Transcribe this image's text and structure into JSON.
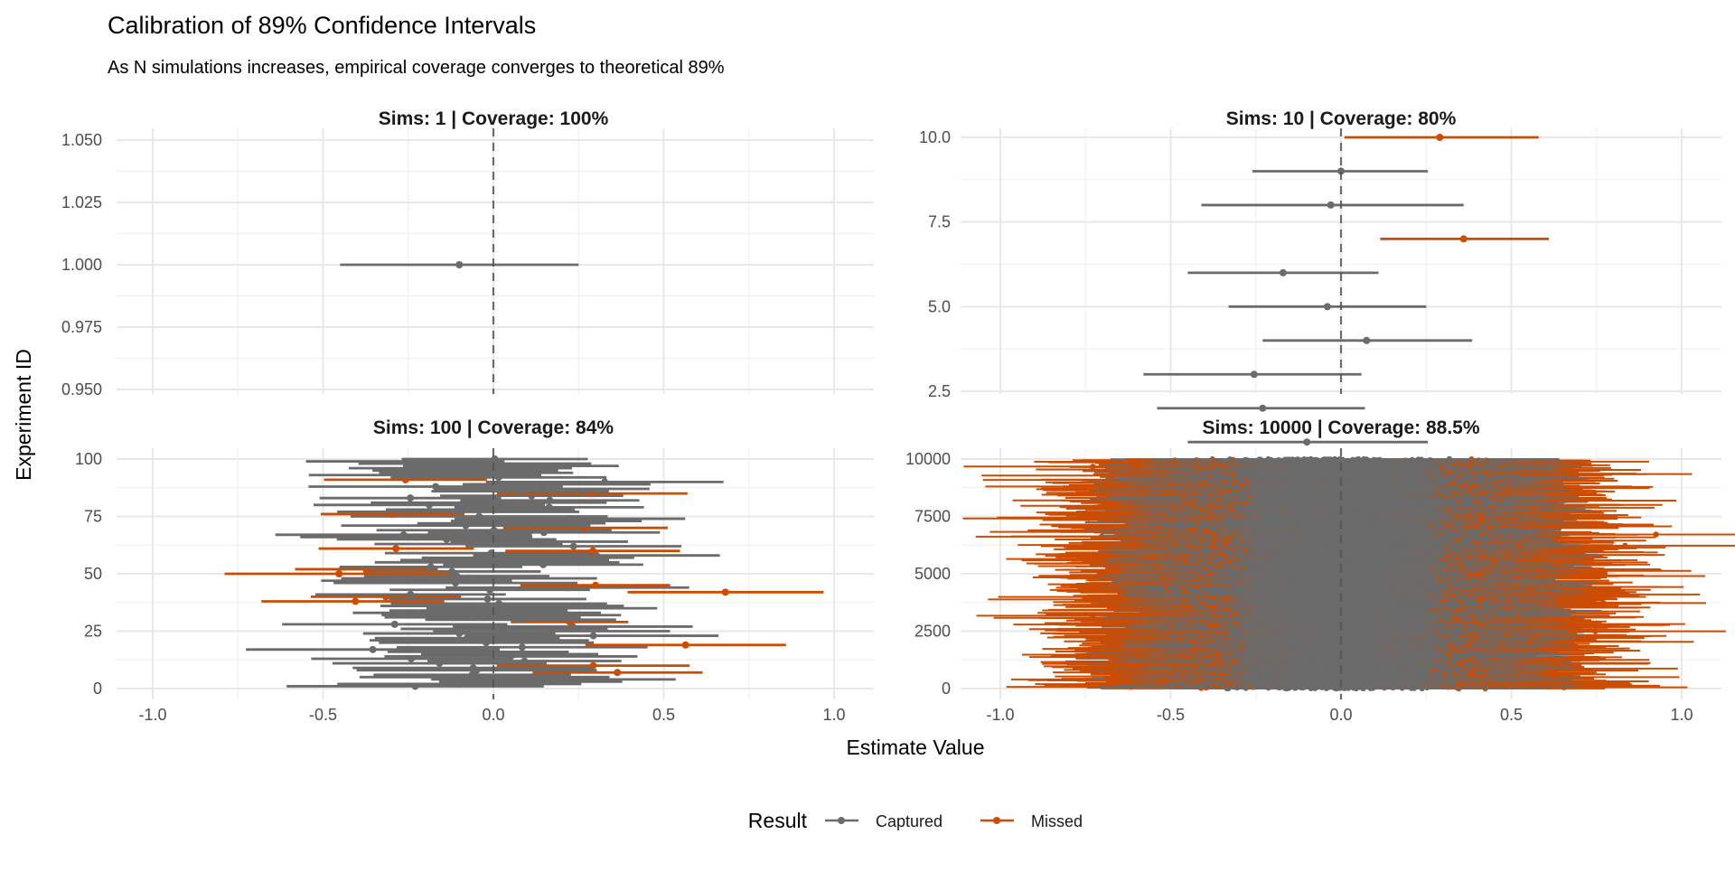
{
  "chart_data": {
    "type": "scatter",
    "mark": "pointrange",
    "title": "Calibration of 89% Confidence Intervals",
    "subtitle": "As N simulations increases, empirical coverage converges to theoretical 89%",
    "xlabel": "Estimate Value",
    "ylabel": "Experiment ID",
    "legend": {
      "title": "Result",
      "placement": "bottom",
      "entries": [
        {
          "label": "Captured",
          "color": "#6b6b6b"
        },
        {
          "label": "Missed",
          "color": "#cc4c02"
        }
      ]
    },
    "reference_line": {
      "x": 0,
      "style": "dashed"
    },
    "grid": true,
    "xlim": [
      -1.1,
      1.1
    ],
    "xticks": [
      -1.0,
      -0.5,
      0.0,
      0.5,
      1.0
    ],
    "xtick_labels": [
      "-1.0",
      "-0.5",
      "0.0",
      "0.5",
      "1.0"
    ],
    "panels": [
      {
        "label": "Sims: 1 | Coverage: 100%",
        "n_sims": 1,
        "coverage_pct": 100,
        "ylim": [
          0.95,
          1.05
        ],
        "yticks": [
          0.95,
          0.975,
          1.0,
          1.025,
          1.05
        ],
        "ytick_labels": [
          "0.950",
          "0.975",
          "1.000",
          "1.025",
          "1.050"
        ],
        "intervals": [
          {
            "id": 1,
            "estimate": -0.1,
            "lower": -0.45,
            "upper": 0.25,
            "result": "Captured"
          }
        ]
      },
      {
        "label": "Sims: 10 | Coverage: 80%",
        "n_sims": 10,
        "coverage_pct": 80,
        "ylim": [
          0.55,
          10.45
        ],
        "yticks": [
          2.5,
          5.0,
          7.5,
          10.0
        ],
        "ytick_labels": [
          "2.5",
          "5.0",
          "7.5",
          "10.0"
        ],
        "intervals": [
          {
            "id": 1,
            "estimate": -0.1,
            "lower": -0.45,
            "upper": 0.255,
            "result": "Captured"
          },
          {
            "id": 2,
            "estimate": -0.23,
            "lower": -0.54,
            "upper": 0.07,
            "result": "Captured"
          },
          {
            "id": 3,
            "estimate": -0.255,
            "lower": -0.58,
            "upper": 0.06,
            "result": "Captured"
          },
          {
            "id": 4,
            "estimate": 0.075,
            "lower": -0.23,
            "upper": 0.385,
            "result": "Captured"
          },
          {
            "id": 5,
            "estimate": -0.04,
            "lower": -0.33,
            "upper": 0.25,
            "result": "Captured"
          },
          {
            "id": 6,
            "estimate": -0.17,
            "lower": -0.45,
            "upper": 0.11,
            "result": "Captured"
          },
          {
            "id": 7,
            "estimate": 0.36,
            "lower": 0.115,
            "upper": 0.61,
            "result": "Missed"
          },
          {
            "id": 8,
            "estimate": -0.03,
            "lower": -0.41,
            "upper": 0.36,
            "result": "Captured"
          },
          {
            "id": 9,
            "estimate": 0.0,
            "lower": -0.26,
            "upper": 0.255,
            "result": "Captured"
          },
          {
            "id": 10,
            "estimate": 0.29,
            "lower": 0.01,
            "upper": 0.58,
            "result": "Missed"
          }
        ]
      },
      {
        "label": "Sims: 100 | Coverage: 84%",
        "n_sims": 100,
        "coverage_pct": 84,
        "ylim": [
          0,
          100
        ],
        "yticks": [
          0,
          25,
          50,
          75,
          100
        ],
        "ytick_labels": [
          "0",
          "25",
          "50",
          "75",
          "100"
        ],
        "captured_count": 84,
        "missed_count": 16,
        "missed_intervals": [
          {
            "id": 7,
            "estimate": 0.364,
            "lower": 0.115,
            "upper": 0.614
          },
          {
            "id": 10,
            "estimate": 0.293,
            "lower": 0.01,
            "upper": 0.576
          },
          {
            "id": 19,
            "estimate": 0.564,
            "lower": 0.27,
            "upper": 0.859
          },
          {
            "id": 29,
            "estimate": 0.224,
            "lower": 0.051,
            "upper": 0.396
          },
          {
            "id": 38,
            "estimate": -0.405,
            "lower": -0.681,
            "upper": -0.144
          },
          {
            "id": 40,
            "estimate": -0.316,
            "lower": -0.536,
            "upper": -0.095
          },
          {
            "id": 42,
            "estimate": 0.681,
            "lower": 0.394,
            "upper": 0.969
          },
          {
            "id": 45,
            "estimate": 0.3,
            "lower": 0.079,
            "upper": 0.519
          },
          {
            "id": 50,
            "estimate": -0.453,
            "lower": -0.789,
            "upper": -0.12
          },
          {
            "id": 52,
            "estimate": -0.373,
            "lower": -0.582,
            "upper": -0.163
          },
          {
            "id": 60,
            "estimate": 0.292,
            "lower": 0.035,
            "upper": 0.548
          },
          {
            "id": 61,
            "estimate": -0.286,
            "lower": -0.513,
            "upper": -0.057
          },
          {
            "id": 70,
            "estimate": 0.268,
            "lower": 0.029,
            "upper": 0.512
          },
          {
            "id": 76,
            "estimate": -0.296,
            "lower": -0.507,
            "upper": -0.085
          },
          {
            "id": 85,
            "estimate": 0.29,
            "lower": 0.01,
            "upper": 0.57
          },
          {
            "id": 91,
            "estimate": -0.258,
            "lower": -0.497,
            "upper": -0.019
          }
        ]
      },
      {
        "label": "Sims: 10000 | Coverage: 88.5%",
        "n_sims": 10000,
        "coverage_pct": 88.5,
        "ylim": [
          0,
          10000
        ],
        "yticks": [
          0,
          2500,
          5000,
          7500,
          10000
        ],
        "ytick_labels": [
          "0",
          "2500",
          "5000",
          "7500",
          "10000"
        ],
        "captured_count": 8850,
        "missed_count": 1150
      }
    ]
  }
}
